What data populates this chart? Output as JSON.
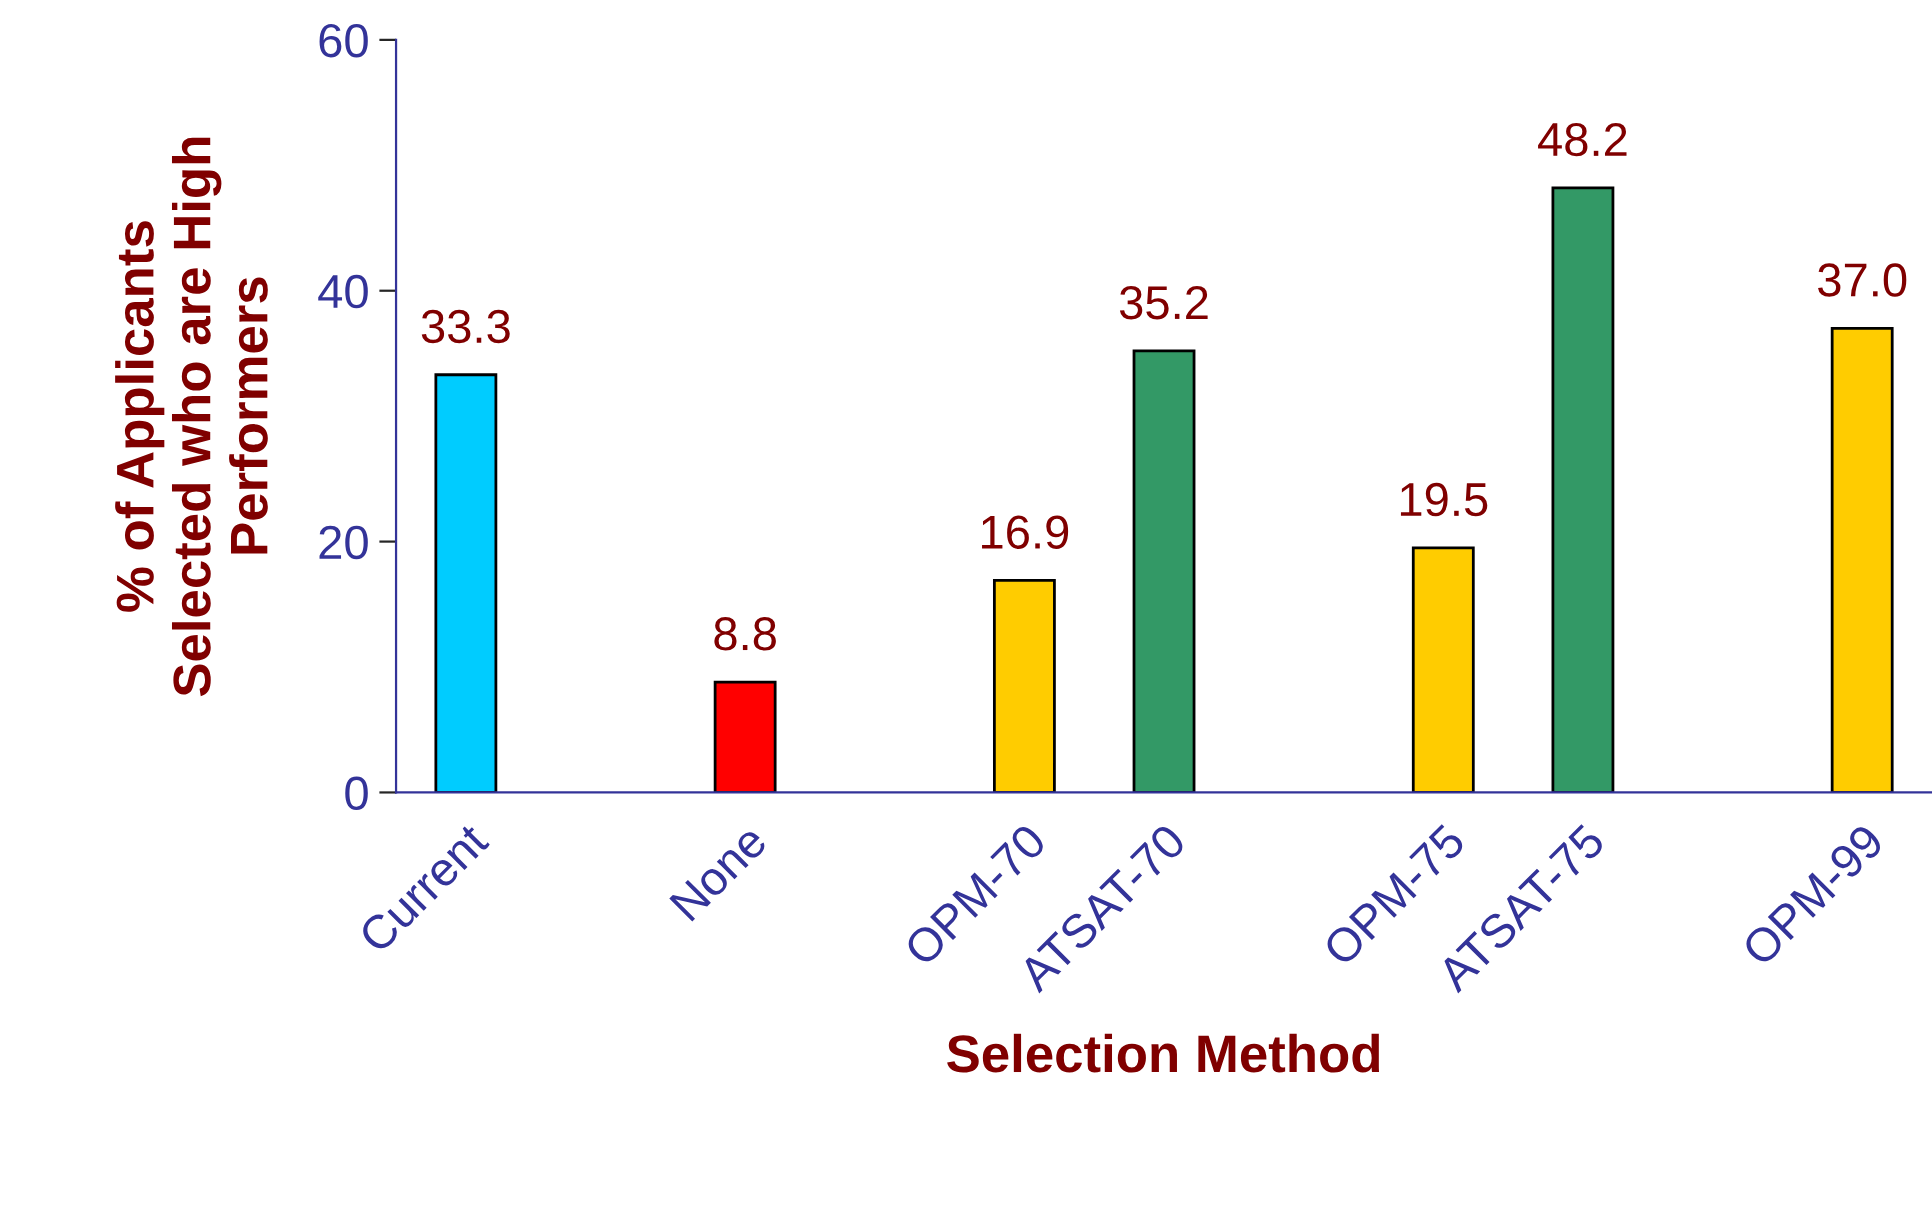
{
  "chart_data": {
    "type": "bar",
    "categories": [
      "Current",
      null,
      "None",
      null,
      "OPM-70",
      "ATSAT-70",
      null,
      "OPM-75",
      "ATSAT-75",
      null,
      "OPM-99"
    ],
    "values": [
      33.3,
      null,
      8.8,
      null,
      16.9,
      35.2,
      null,
      19.5,
      48.2,
      null,
      37.0
    ],
    "colors": [
      "#00ccff",
      null,
      "#ff0000",
      null,
      "#ffcc00",
      "#339966",
      null,
      "#ffcc00",
      "#339966",
      null,
      "#ffcc00"
    ],
    "value_labels": [
      "33.3",
      null,
      "8.8",
      null,
      "16.9",
      "35.2",
      null,
      "19.5",
      "48.2",
      null,
      "37.0"
    ],
    "xlabel": "Selection Method",
    "ylabel": "% of Applicants\nSelected who are High\nPerformers",
    "ylim": [
      0,
      60
    ],
    "yticks": [
      0,
      20,
      40,
      60
    ],
    "grid": false,
    "legend": false
  }
}
